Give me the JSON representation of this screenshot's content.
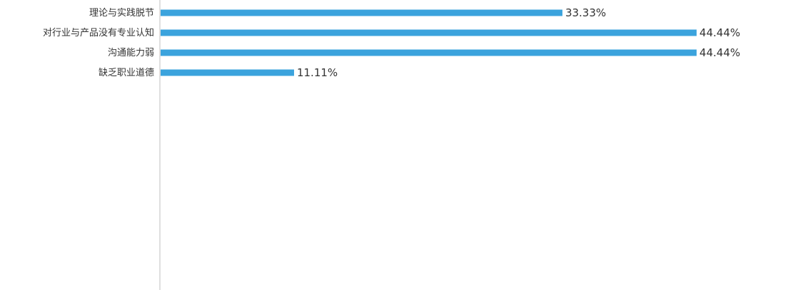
{
  "chart_data": {
    "type": "bar",
    "orientation": "horizontal",
    "categories": [
      "理论与实践脱节",
      "对行业与产品没有专业认知",
      "沟通能力弱",
      "缺乏职业道德"
    ],
    "values": [
      33.33,
      44.44,
      44.44,
      11.11
    ],
    "value_labels": [
      "33.33%",
      "44.44%",
      "44.44%",
      "11.11%"
    ],
    "xlim": [
      0,
      50
    ],
    "title": "",
    "xlabel": "",
    "ylabel": "",
    "bar_color": "#3ba3dd",
    "grid": false,
    "legend": "none"
  }
}
